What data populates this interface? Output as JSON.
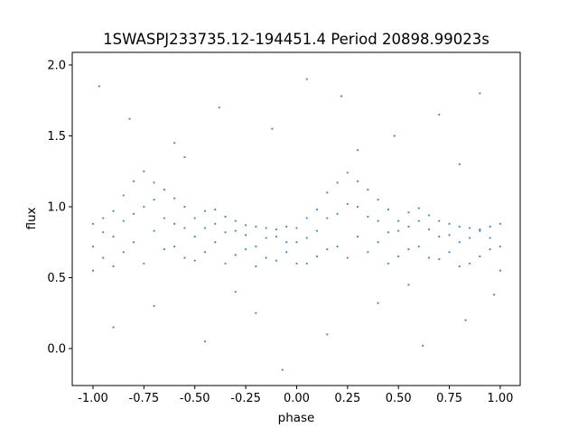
{
  "chart_data": {
    "type": "scatter",
    "title": "1SWASPJ233735.12-194451.4 Period 20898.99023s",
    "xlabel": "phase",
    "ylabel": "flux",
    "xlim": [
      -1.102,
      1.098
    ],
    "ylim": [
      -0.261,
      2.089
    ],
    "xticks": [
      "-1.00",
      "-0.75",
      "-0.50",
      "-0.25",
      "0.00",
      "0.25",
      "0.50",
      "0.75",
      "1.00"
    ],
    "yticks": [
      "0.0",
      "0.5",
      "1.0",
      "1.5",
      "2.0"
    ],
    "grid": false,
    "color": "#1f77b4",
    "points": [
      [
        -1.0,
        0.72
      ],
      [
        -1.0,
        0.55
      ],
      [
        -1.0,
        0.88
      ],
      [
        -0.95,
        0.64
      ],
      [
        -0.95,
        0.82
      ],
      [
        -0.95,
        0.92
      ],
      [
        -0.9,
        0.79
      ],
      [
        -0.9,
        0.58
      ],
      [
        -0.9,
        0.97
      ],
      [
        -0.85,
        0.68
      ],
      [
        -0.85,
        0.9
      ],
      [
        -0.85,
        1.08
      ],
      [
        -0.8,
        0.75
      ],
      [
        -0.8,
        0.95
      ],
      [
        -0.8,
        1.18
      ],
      [
        -0.75,
        0.6
      ],
      [
        -0.75,
        1.0
      ],
      [
        -0.75,
        1.25
      ],
      [
        -0.7,
        0.83
      ],
      [
        -0.7,
        1.05
      ],
      [
        -0.7,
        1.17
      ],
      [
        -0.65,
        0.7
      ],
      [
        -0.65,
        0.92
      ],
      [
        -0.65,
        1.12
      ],
      [
        -0.6,
        0.72
      ],
      [
        -0.6,
        0.88
      ],
      [
        -0.6,
        1.06
      ],
      [
        -0.55,
        0.64
      ],
      [
        -0.55,
        0.85
      ],
      [
        -0.55,
        1.0
      ],
      [
        -0.5,
        0.79
      ],
      [
        -0.5,
        0.62
      ],
      [
        -0.5,
        0.92
      ],
      [
        -0.45,
        0.68
      ],
      [
        -0.45,
        0.85
      ],
      [
        -0.45,
        0.97
      ],
      [
        -0.4,
        0.75
      ],
      [
        -0.4,
        0.88
      ],
      [
        -0.4,
        0.98
      ],
      [
        -0.35,
        0.6
      ],
      [
        -0.35,
        0.82
      ],
      [
        -0.35,
        0.93
      ],
      [
        -0.3,
        0.83
      ],
      [
        -0.3,
        0.66
      ],
      [
        -0.3,
        0.9
      ],
      [
        -0.25,
        0.7
      ],
      [
        -0.25,
        0.8
      ],
      [
        -0.25,
        0.87
      ],
      [
        -0.2,
        0.72
      ],
      [
        -0.2,
        0.58
      ],
      [
        -0.2,
        0.86
      ],
      [
        -0.15,
        0.64
      ],
      [
        -0.15,
        0.78
      ],
      [
        -0.15,
        0.85
      ],
      [
        -0.1,
        0.79
      ],
      [
        -0.1,
        0.62
      ],
      [
        -0.1,
        0.84
      ],
      [
        -0.05,
        0.68
      ],
      [
        -0.05,
        0.75
      ],
      [
        -0.05,
        0.86
      ],
      [
        0.0,
        0.75
      ],
      [
        0.0,
        0.6
      ],
      [
        0.0,
        0.85
      ],
      [
        0.05,
        0.6
      ],
      [
        0.05,
        0.78
      ],
      [
        0.05,
        0.92
      ],
      [
        0.1,
        0.83
      ],
      [
        0.1,
        0.65
      ],
      [
        0.1,
        0.98
      ],
      [
        0.15,
        0.7
      ],
      [
        0.15,
        0.92
      ],
      [
        0.15,
        1.1
      ],
      [
        0.2,
        0.72
      ],
      [
        0.2,
        0.95
      ],
      [
        0.2,
        1.17
      ],
      [
        0.25,
        0.64
      ],
      [
        0.25,
        1.02
      ],
      [
        0.25,
        1.24
      ],
      [
        0.3,
        0.79
      ],
      [
        0.3,
        1.0
      ],
      [
        0.3,
        1.18
      ],
      [
        0.35,
        0.68
      ],
      [
        0.35,
        0.93
      ],
      [
        0.35,
        1.12
      ],
      [
        0.4,
        0.75
      ],
      [
        0.4,
        0.9
      ],
      [
        0.4,
        1.05
      ],
      [
        0.45,
        0.6
      ],
      [
        0.45,
        0.82
      ],
      [
        0.45,
        0.98
      ],
      [
        0.5,
        0.83
      ],
      [
        0.5,
        0.65
      ],
      [
        0.5,
        0.9
      ],
      [
        0.55,
        0.7
      ],
      [
        0.55,
        0.86
      ],
      [
        0.55,
        0.96
      ],
      [
        0.6,
        0.72
      ],
      [
        0.6,
        0.9
      ],
      [
        0.6,
        0.99
      ],
      [
        0.65,
        0.64
      ],
      [
        0.65,
        0.84
      ],
      [
        0.65,
        0.94
      ],
      [
        0.7,
        0.79
      ],
      [
        0.7,
        0.63
      ],
      [
        0.7,
        0.9
      ],
      [
        0.75,
        0.68
      ],
      [
        0.75,
        0.8
      ],
      [
        0.75,
        0.88
      ],
      [
        0.8,
        0.75
      ],
      [
        0.8,
        0.58
      ],
      [
        0.8,
        0.86
      ],
      [
        0.85,
        0.6
      ],
      [
        0.85,
        0.78
      ],
      [
        0.85,
        0.85
      ],
      [
        0.9,
        0.83
      ],
      [
        0.9,
        0.65
      ],
      [
        0.9,
        0.84
      ],
      [
        0.95,
        0.7
      ],
      [
        0.95,
        0.78
      ],
      [
        0.95,
        0.86
      ],
      [
        1.0,
        0.72
      ],
      [
        1.0,
        0.55
      ],
      [
        1.0,
        0.88
      ],
      [
        -0.97,
        1.85
      ],
      [
        -0.82,
        1.62
      ],
      [
        -0.6,
        1.45
      ],
      [
        -0.38,
        1.7
      ],
      [
        -0.12,
        1.55
      ],
      [
        0.05,
        1.9
      ],
      [
        0.22,
        1.78
      ],
      [
        0.48,
        1.5
      ],
      [
        0.7,
        1.65
      ],
      [
        0.9,
        1.8
      ],
      [
        -0.9,
        0.15
      ],
      [
        -0.7,
        0.3
      ],
      [
        -0.45,
        0.05
      ],
      [
        -0.2,
        0.25
      ],
      [
        -0.07,
        -0.15
      ],
      [
        0.15,
        0.1
      ],
      [
        0.4,
        0.32
      ],
      [
        0.62,
        0.02
      ],
      [
        0.83,
        0.2
      ],
      [
        0.97,
        0.38
      ],
      [
        -0.55,
        1.35
      ],
      [
        0.3,
        1.4
      ],
      [
        0.8,
        1.3
      ],
      [
        -0.3,
        0.4
      ],
      [
        0.55,
        0.45
      ]
    ]
  }
}
